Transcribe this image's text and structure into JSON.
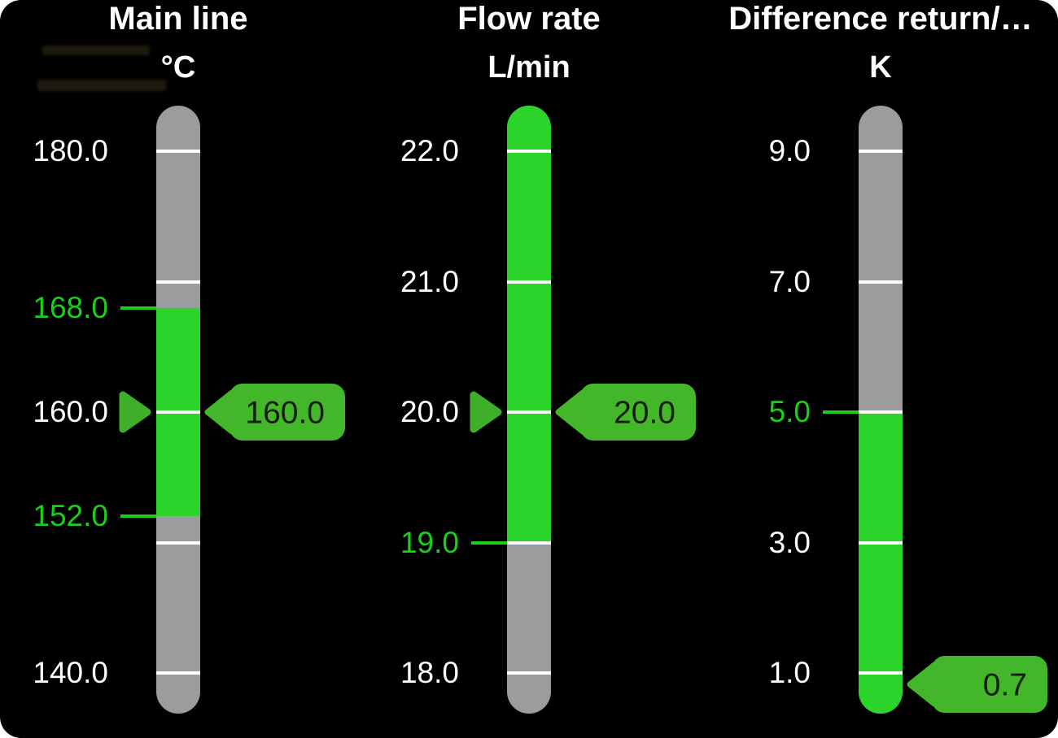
{
  "page": {
    "background": "#ffffff",
    "panel_background": "#000000"
  },
  "colors": {
    "bar_gray": "#9c9c9c",
    "bar_green": "#2bd32b",
    "limit_green": "#17d017",
    "marker_green": "#44b62a",
    "pointer_green": "#3fae2a",
    "tick_white": "#ffffff",
    "label_white": "#ffffff",
    "tag_text": "#0f1d06"
  },
  "chart_data": [
    {
      "type": "bar",
      "style": "vertical-bulb-gauge",
      "title": "Main line",
      "unit": "°C",
      "axis": {
        "min": 140,
        "max": 180,
        "tick_step": 10,
        "ticks": [
          180,
          170,
          160,
          150,
          140
        ]
      },
      "tick_labels": [
        {
          "text": "180.0",
          "value": 180,
          "green": false
        },
        {
          "text": "168.0",
          "value": 168,
          "green": true
        },
        {
          "text": "160.0",
          "value": 160,
          "green": false
        },
        {
          "text": "152.0",
          "value": 152,
          "green": true
        },
        {
          "text": "140.0",
          "value": 140,
          "green": false
        }
      ],
      "limits": [
        168,
        152
      ],
      "green_zone": {
        "from": 152,
        "to": 168
      },
      "value": 160.0,
      "value_text": "160.0",
      "show_pointer": true
    },
    {
      "type": "bar",
      "style": "vertical-bulb-gauge",
      "title": "Flow rate",
      "unit": "L/min",
      "axis": {
        "min": 18,
        "max": 22,
        "tick_step": 1,
        "ticks": [
          22,
          21,
          20,
          19,
          18
        ]
      },
      "tick_labels": [
        {
          "text": "22.0",
          "value": 22,
          "green": false
        },
        {
          "text": "21.0",
          "value": 21,
          "green": false
        },
        {
          "text": "20.0",
          "value": 20,
          "green": false
        },
        {
          "text": "19.0",
          "value": 19,
          "green": true
        },
        {
          "text": "18.0",
          "value": 18,
          "green": false
        }
      ],
      "limits": [
        19
      ],
      "green_zone": {
        "from": 19,
        "to": null
      },
      "value": 20.0,
      "value_text": "20.0",
      "show_pointer": true
    },
    {
      "type": "bar",
      "style": "vertical-bulb-gauge",
      "title": "Difference return/…",
      "unit": "K",
      "axis": {
        "min": 1,
        "max": 9,
        "tick_step": 2,
        "ticks": [
          9,
          7,
          5,
          3,
          1
        ]
      },
      "tick_labels": [
        {
          "text": "9.0",
          "value": 9,
          "green": false
        },
        {
          "text": "7.0",
          "value": 7,
          "green": false
        },
        {
          "text": "5.0",
          "value": 5,
          "green": true
        },
        {
          "text": "3.0",
          "value": 3,
          "green": false
        },
        {
          "text": "1.0",
          "value": 1,
          "green": false
        }
      ],
      "limits": [
        5
      ],
      "green_zone": {
        "from": null,
        "to": 5
      },
      "value": 0.7,
      "value_text": "0.7",
      "show_pointer": false
    }
  ]
}
